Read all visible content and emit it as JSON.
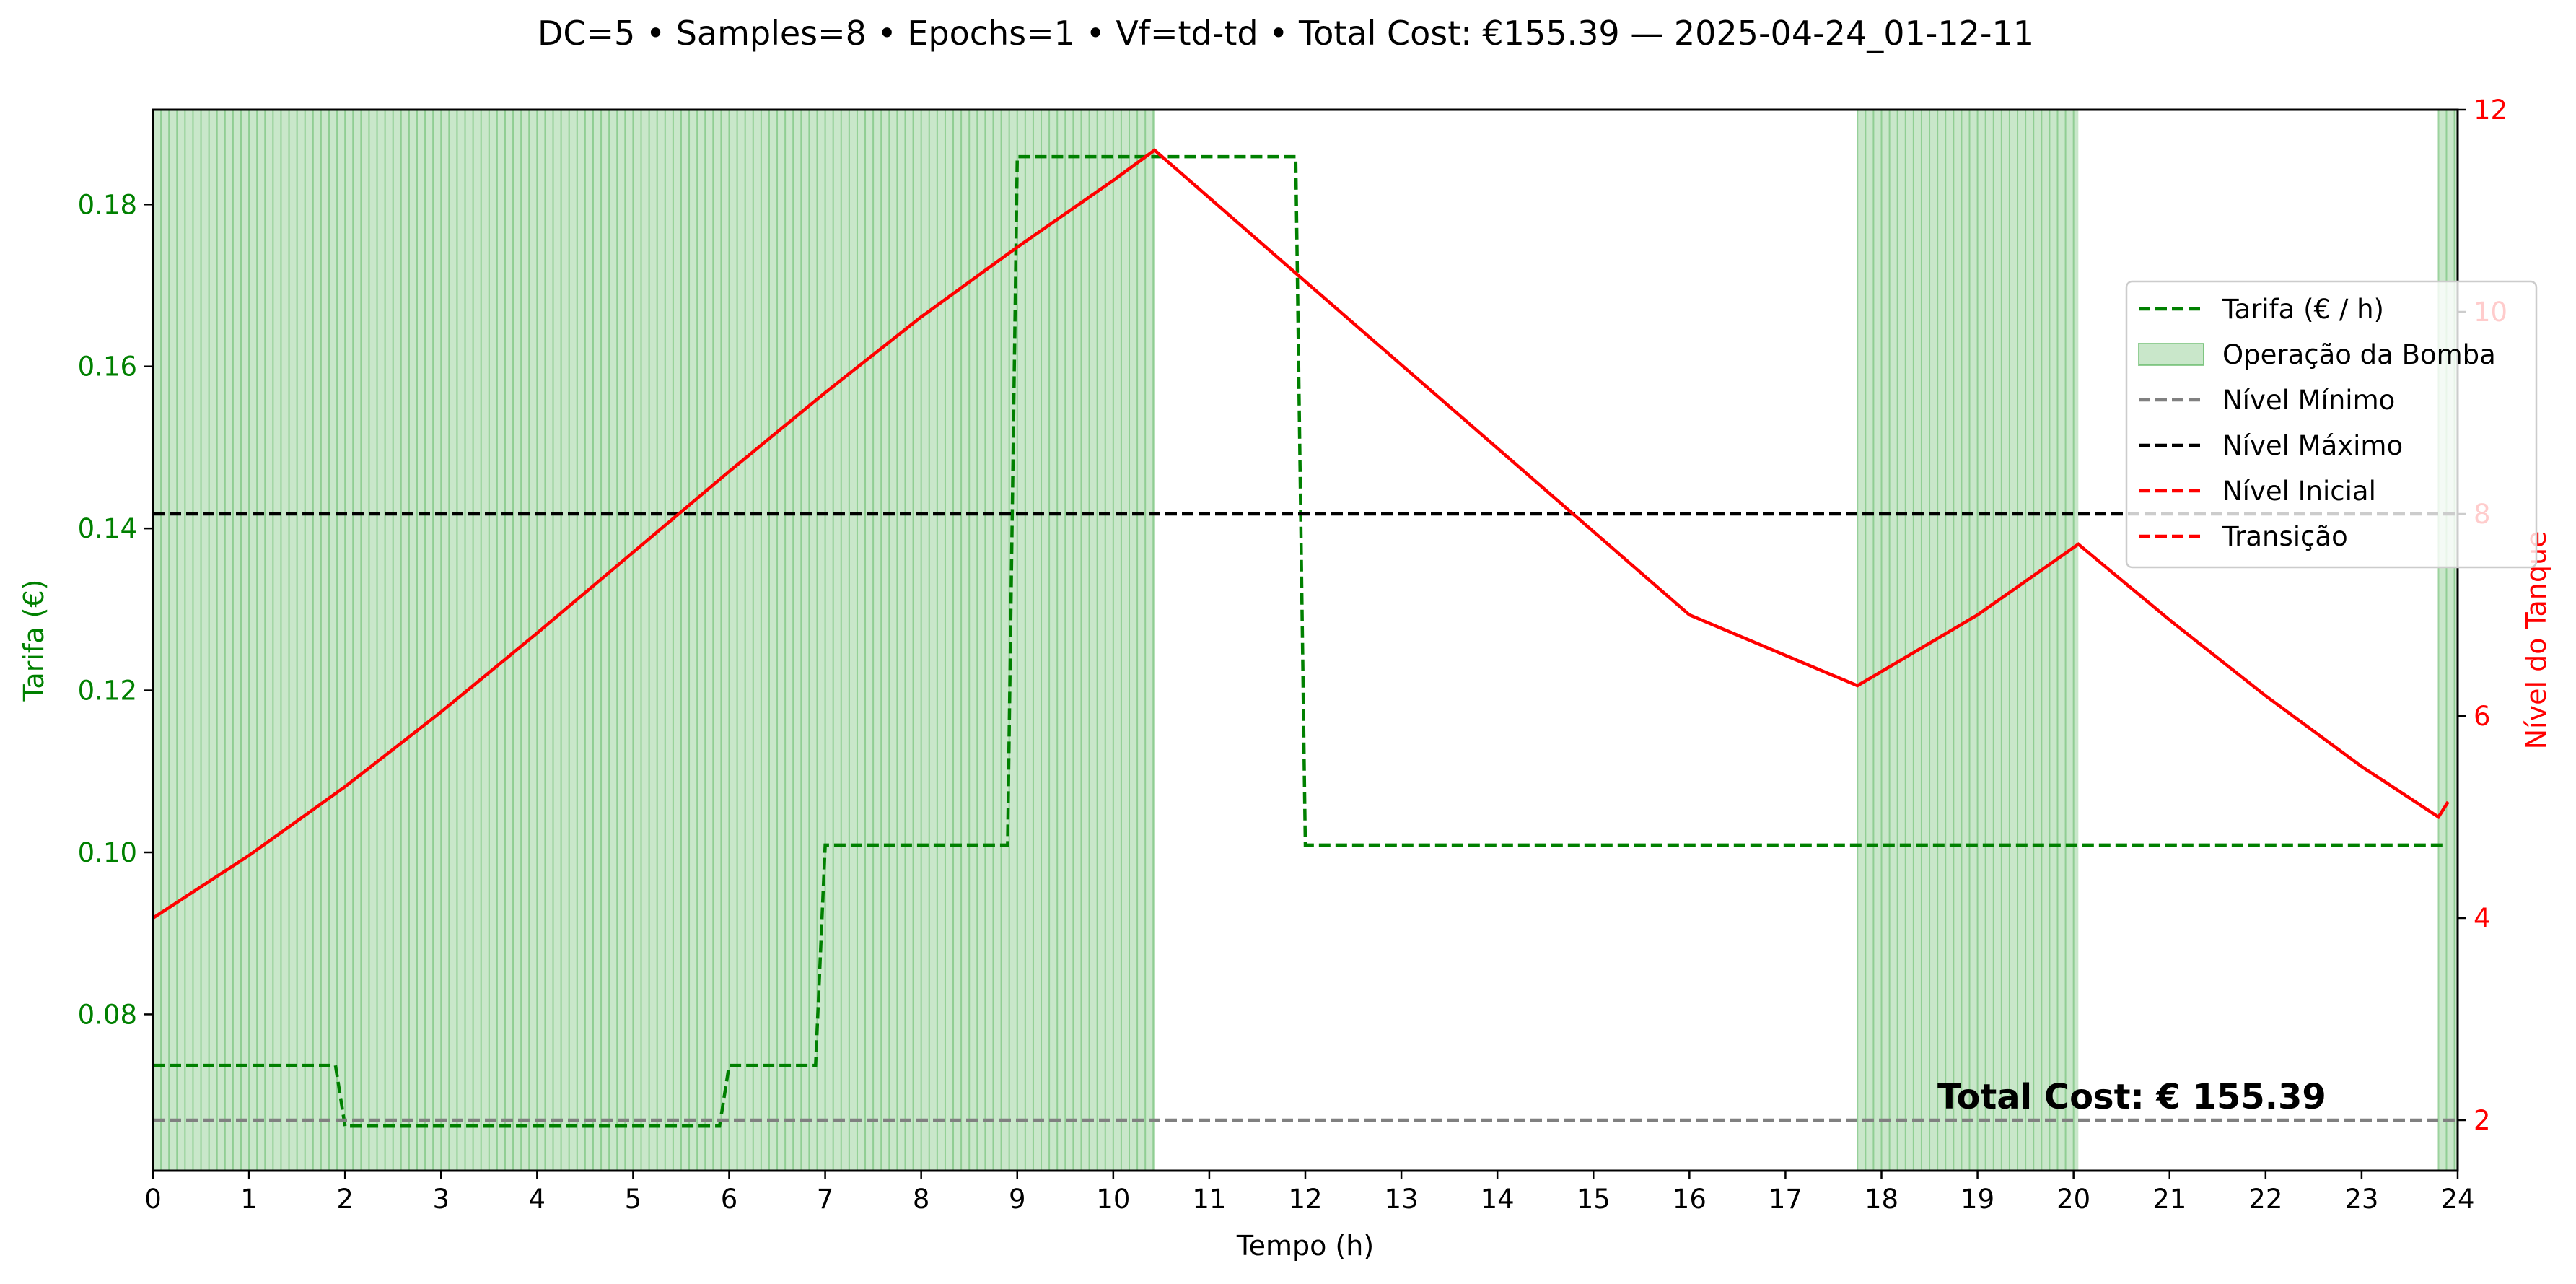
{
  "chart_data": {
    "type": "line",
    "title": "DC=5 • Samples=8 • Epochs=1 • Vf=td-td • Total Cost: €155.39 — 2025-04-24_01-12-11",
    "xlabel": "Tempo (h)",
    "ylabel_left": "Tarifa (€)",
    "ylabel_right": "Nível do Tanque",
    "xlim": [
      0,
      24
    ],
    "ylim_left": [
      0.0607,
      0.1917
    ],
    "ylim_right": [
      1.5,
      12
    ],
    "x_ticks": [
      "0",
      "1",
      "2",
      "3",
      "4",
      "5",
      "6",
      "7",
      "8",
      "9",
      "10",
      "11",
      "12",
      "13",
      "14",
      "15",
      "16",
      "17",
      "18",
      "19",
      "20",
      "21",
      "22",
      "23",
      "24"
    ],
    "y_ticks_left": [
      "0.08",
      "0.10",
      "0.12",
      "0.14",
      "0.16",
      "0.18"
    ],
    "y_ticks_right": [
      "2",
      "4",
      "6",
      "8",
      "10",
      "12"
    ],
    "grid": false,
    "legend_placement": "right",
    "annotation": "Total Cost: € 155.39",
    "colors": {
      "tariff": "#008000",
      "pump": "#4caf50",
      "min_level": "#808080",
      "max_level": "#000000",
      "tank_level": "#ff0000",
      "left_axis_text": "#008000",
      "right_axis_text": "#ff0000"
    },
    "legend": [
      {
        "label": "Tarifa (€ / h)",
        "kind": "dashed",
        "color": "#008000"
      },
      {
        "label": "Operação da Bomba",
        "kind": "patch",
        "color": "#4caf50"
      },
      {
        "label": "Nível Mínimo",
        "kind": "dashed",
        "color": "#808080"
      },
      {
        "label": "Nível Máximo",
        "kind": "dashed",
        "color": "#000000"
      },
      {
        "label": "Nível Inicial",
        "kind": "dashed",
        "color": "#ff0000"
      },
      {
        "label": "Transição",
        "kind": "dashed",
        "color": "#ff0000"
      }
    ],
    "series": [
      {
        "name": "Tarifa (€ / h)",
        "axis": "left",
        "style": "dashed",
        "x": [
          0,
          1.9,
          2.0,
          5.9,
          6.0,
          6.9,
          7.0,
          8.9,
          9.0,
          11.9,
          12.0,
          23.85
        ],
        "y": [
          0.0737,
          0.0737,
          0.0662,
          0.0662,
          0.0737,
          0.0737,
          0.1009,
          0.1009,
          0.1859,
          0.1859,
          0.1009,
          0.1009
        ]
      },
      {
        "name": "Nível Mínimo",
        "axis": "right",
        "style": "dashed",
        "x": [
          0,
          24
        ],
        "y": [
          2,
          2
        ]
      },
      {
        "name": "Nível Máximo",
        "axis": "right",
        "style": "dashed",
        "x": [
          0,
          24
        ],
        "y": [
          8,
          8
        ]
      },
      {
        "name": "Nível do Tanque",
        "axis": "right",
        "style": "solid",
        "x": [
          0,
          1,
          2,
          3,
          4,
          5,
          6,
          7,
          8,
          9,
          10,
          10.43,
          12,
          14,
          16,
          17.75,
          19,
          20.05,
          21,
          22,
          23,
          23.8,
          23.9
        ],
        "y": [
          4.0,
          4.62,
          5.3,
          6.04,
          6.82,
          7.62,
          8.42,
          9.2,
          9.95,
          10.64,
          11.3,
          11.6,
          10.3,
          8.65,
          7.0,
          6.3,
          7.0,
          7.7,
          6.95,
          6.2,
          5.5,
          5.0,
          5.15
        ]
      }
    ],
    "pump_operation": [
      [
        0,
        10.43
      ],
      [
        17.75,
        20.05
      ],
      [
        23.8,
        24
      ]
    ]
  }
}
